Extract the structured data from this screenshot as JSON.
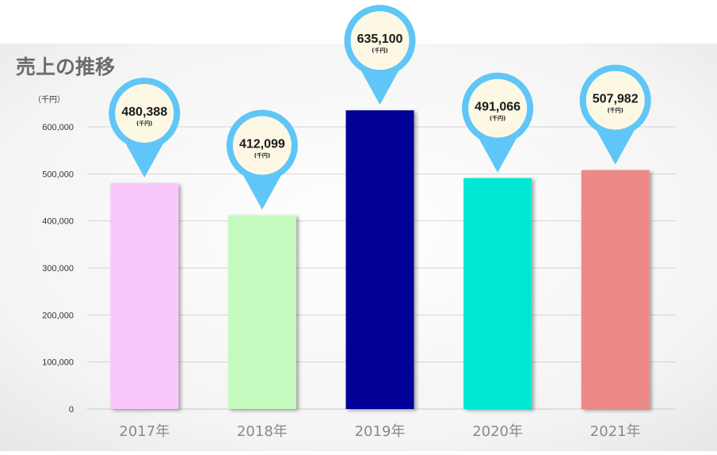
{
  "chart_data": {
    "type": "bar",
    "title": "売上の推移",
    "unit_label": "（千円）",
    "categories": [
      "2017年",
      "2018年",
      "2019年",
      "2020年",
      "2021年"
    ],
    "values": [
      480388,
      412099,
      635100,
      491066,
      507982
    ],
    "value_labels": [
      "480,388",
      "412,099",
      "635,100",
      "491,066",
      "507,982"
    ],
    "value_unit": "(千円)",
    "bar_colors": [
      "#f9c8fb",
      "#c5fbbf",
      "#000096",
      "#00e8d5",
      "#ec8a89"
    ],
    "pin_color": "#5fc6f7",
    "pin_fill": "#fdf8e4",
    "ylim": [
      0,
      600000
    ],
    "yticks": [
      0,
      100000,
      200000,
      300000,
      400000,
      500000,
      600000
    ],
    "ytick_labels": [
      "0",
      "100,000",
      "200,000",
      "300,000",
      "400,000",
      "500,000",
      "600,000"
    ],
    "grid": true
  }
}
